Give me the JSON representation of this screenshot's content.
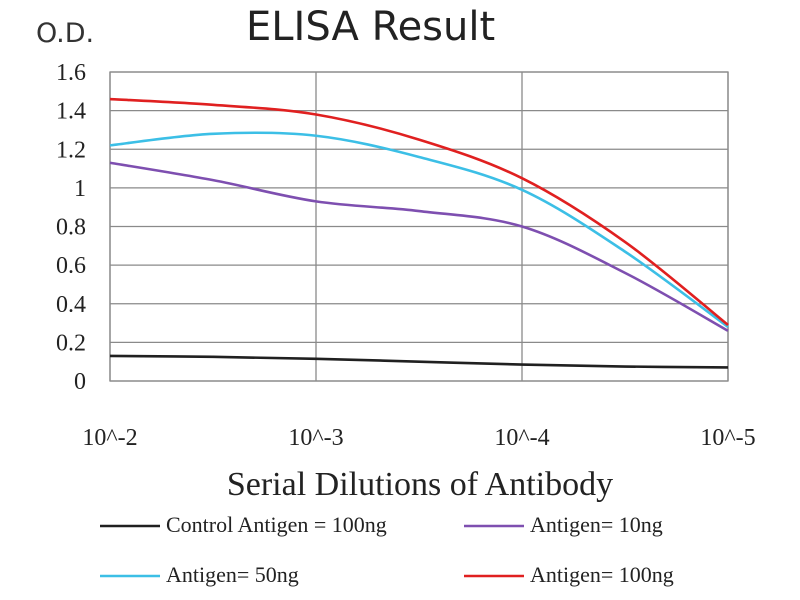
{
  "chart_data": {
    "type": "line",
    "title": "ELISA Result",
    "ylabel": "O.D.",
    "xlabel": "Serial Dilutions of Antibody",
    "categories": [
      "10^-2",
      "10^-3",
      "10^-4",
      "10^-5"
    ],
    "ylim": [
      0,
      1.6
    ],
    "yticks": [
      "0",
      "0.2",
      "0.4",
      "0.6",
      "0.8",
      "1",
      "1.2",
      "1.4",
      "1.6"
    ],
    "grid": true,
    "legend_position": "bottom",
    "series": [
      {
        "name": "Control Antigen = 100ng",
        "color": "#202020",
        "x": [
          0,
          0.5,
          1,
          1.5,
          2,
          2.5,
          3
        ],
        "values": [
          0.13,
          0.125,
          0.115,
          0.1,
          0.085,
          0.075,
          0.07
        ]
      },
      {
        "name": "Antigen= 10ng",
        "color": "#7e4fb0",
        "x": [
          0,
          0.5,
          1,
          1.5,
          2,
          2.5,
          3
        ],
        "values": [
          1.13,
          1.04,
          0.93,
          0.88,
          0.8,
          0.56,
          0.26
        ]
      },
      {
        "name": "Antigen= 50ng",
        "color": "#3cbfe6",
        "x": [
          0,
          0.5,
          1,
          1.5,
          2,
          2.5,
          3
        ],
        "values": [
          1.22,
          1.28,
          1.27,
          1.16,
          0.99,
          0.67,
          0.28
        ]
      },
      {
        "name": "Antigen= 100ng",
        "color": "#e02020",
        "x": [
          0,
          0.5,
          1,
          1.5,
          2,
          2.5,
          3
        ],
        "values": [
          1.46,
          1.43,
          1.38,
          1.25,
          1.05,
          0.72,
          0.29
        ]
      }
    ]
  }
}
